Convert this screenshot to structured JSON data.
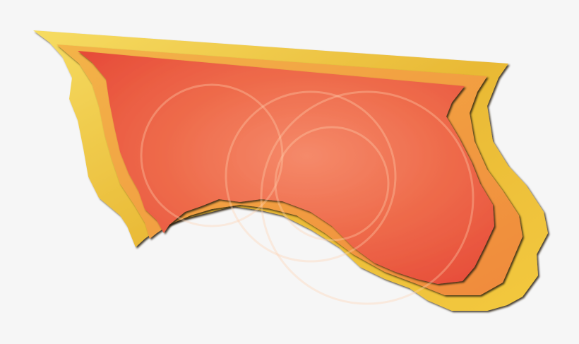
{
  "image": {
    "subject": "layered-torn-paper-shape",
    "colors": {
      "background": "#f6f6f6",
      "back_layer": "#e9b935",
      "back_layer_light": "#f6dc62",
      "middle_layer": "#f0a23a",
      "middle_layer_2": "#f08a3c",
      "front_layer": "#ec5a3e",
      "front_layer_light": "#f58a6a",
      "edge_shadow": "#2a1a0a"
    }
  }
}
